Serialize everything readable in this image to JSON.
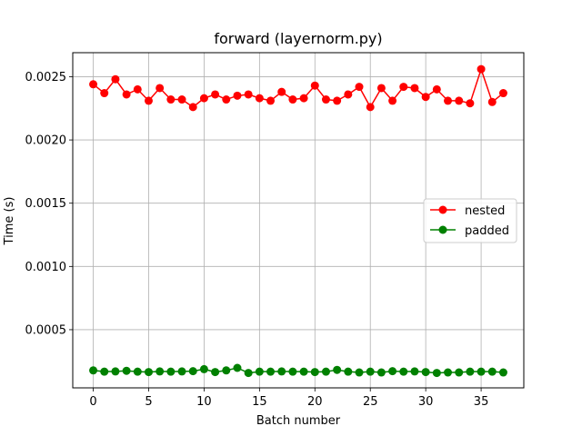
{
  "chart_data": {
    "type": "line",
    "title": "forward (layernorm.py)",
    "xlabel": "Batch number",
    "ylabel": "Time (s)",
    "xlim": [
      -1.85,
      38.85
    ],
    "ylim": [
      4e-05,
      0.00269
    ],
    "xticks": [
      0,
      5,
      10,
      15,
      20,
      25,
      30,
      35
    ],
    "yticks": [
      0.0005,
      0.001,
      0.0015,
      0.002,
      0.0025
    ],
    "ytick_labels": [
      "0.0005",
      "0.0010",
      "0.0015",
      "0.0020",
      "0.0025"
    ],
    "grid": true,
    "legend_position": "center-right",
    "x": [
      0,
      1,
      2,
      3,
      4,
      5,
      6,
      7,
      8,
      9,
      10,
      11,
      12,
      13,
      14,
      15,
      16,
      17,
      18,
      19,
      20,
      21,
      22,
      23,
      24,
      25,
      26,
      27,
      28,
      29,
      30,
      31,
      32,
      33,
      34,
      35,
      36,
      37
    ],
    "series": [
      {
        "name": "nested",
        "color": "#ff0000",
        "values": [
          0.00244,
          0.00237,
          0.00248,
          0.00236,
          0.0024,
          0.00231,
          0.00241,
          0.00232,
          0.00232,
          0.00226,
          0.00233,
          0.00236,
          0.00232,
          0.00235,
          0.00236,
          0.00233,
          0.00231,
          0.00238,
          0.00232,
          0.00233,
          0.00243,
          0.00232,
          0.00231,
          0.00236,
          0.00242,
          0.00226,
          0.00241,
          0.00231,
          0.00242,
          0.00241,
          0.00234,
          0.0024,
          0.00231,
          0.00231,
          0.00229,
          0.00256,
          0.0023,
          0.00237
        ]
      },
      {
        "name": "padded",
        "color": "#008000",
        "values": [
          0.000178,
          0.000168,
          0.00017,
          0.000175,
          0.000168,
          0.000165,
          0.00017,
          0.000168,
          0.00017,
          0.000172,
          0.000188,
          0.000165,
          0.000178,
          0.000198,
          0.000158,
          0.000168,
          0.000168,
          0.00017,
          0.000168,
          0.000168,
          0.000165,
          0.000168,
          0.000182,
          0.000168,
          0.000162,
          0.000168,
          0.000162,
          0.000172,
          0.000168,
          0.00017,
          0.000165,
          0.000158,
          0.000162,
          0.000162,
          0.000168,
          0.000168,
          0.000168,
          0.000162
        ]
      }
    ]
  }
}
